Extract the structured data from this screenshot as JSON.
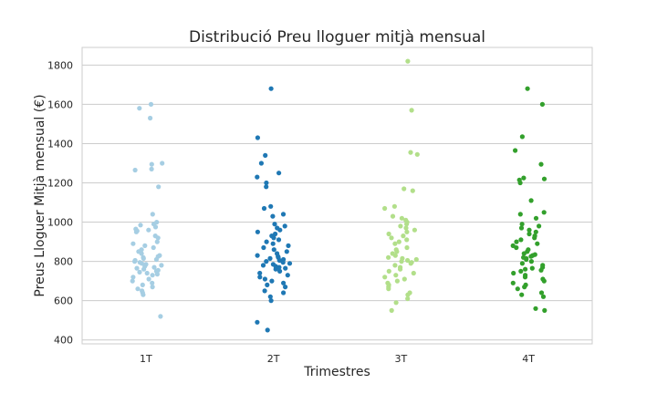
{
  "chart_data": {
    "type": "scatter",
    "subtype": "strip",
    "title": "Distribució Preu lloguer mitjà mensual",
    "xlabel": "Trimestres",
    "ylabel": "Preus Lloguer Mitjà mensual (€)",
    "categories": [
      "1T",
      "2T",
      "3T",
      "4T"
    ],
    "ylim": [
      380,
      1890
    ],
    "yticks": [
      400,
      600,
      800,
      1000,
      1200,
      1400,
      1600,
      1800
    ],
    "grid": "y",
    "legend": "none",
    "colors": [
      "#a6cee3",
      "#1f78b4",
      "#b2df8a",
      "#33a02c"
    ],
    "series": [
      {
        "category": "1T",
        "values": [
          1600,
          1580,
          1530,
          1300,
          1295,
          1270,
          1265,
          1180,
          1040,
          1000,
          990,
          985,
          975,
          965,
          960,
          955,
          950,
          930,
          920,
          900,
          890,
          880,
          870,
          860,
          850,
          840,
          830,
          825,
          820,
          815,
          810,
          805,
          800,
          795,
          790,
          785,
          780,
          775,
          770,
          765,
          760,
          755,
          750,
          745,
          740,
          735,
          730,
          720,
          710,
          700,
          690,
          680,
          670,
          660,
          650,
          640,
          630,
          520
        ]
      },
      {
        "category": "2T",
        "values": [
          1680,
          1430,
          1340,
          1300,
          1250,
          1230,
          1200,
          1180,
          1080,
          1070,
          1040,
          1030,
          990,
          980,
          970,
          960,
          950,
          940,
          930,
          920,
          910,
          900,
          890,
          880,
          870,
          860,
          850,
          840,
          830,
          825,
          820,
          815,
          810,
          805,
          800,
          795,
          790,
          785,
          780,
          775,
          770,
          765,
          760,
          750,
          740,
          730,
          720,
          710,
          700,
          690,
          680,
          670,
          650,
          640,
          620,
          600,
          490,
          450
        ]
      },
      {
        "category": "3T",
        "values": [
          1820,
          1570,
          1355,
          1345,
          1170,
          1160,
          1080,
          1070,
          1030,
          1020,
          1010,
          1000,
          990,
          980,
          970,
          960,
          950,
          940,
          930,
          920,
          910,
          900,
          890,
          870,
          860,
          850,
          840,
          830,
          820,
          815,
          810,
          805,
          800,
          795,
          790,
          780,
          770,
          760,
          750,
          740,
          730,
          720,
          710,
          700,
          690,
          680,
          670,
          660,
          640,
          630,
          610,
          590,
          550
        ]
      },
      {
        "category": "4T",
        "values": [
          1680,
          1600,
          1435,
          1365,
          1295,
          1225,
          1220,
          1215,
          1200,
          1110,
          1050,
          1040,
          1020,
          990,
          980,
          970,
          960,
          950,
          940,
          930,
          920,
          910,
          900,
          890,
          880,
          870,
          860,
          850,
          840,
          835,
          830,
          825,
          820,
          815,
          810,
          800,
          790,
          780,
          770,
          765,
          760,
          755,
          750,
          740,
          730,
          720,
          710,
          700,
          690,
          680,
          670,
          660,
          640,
          630,
          620,
          560,
          550
        ]
      }
    ]
  }
}
